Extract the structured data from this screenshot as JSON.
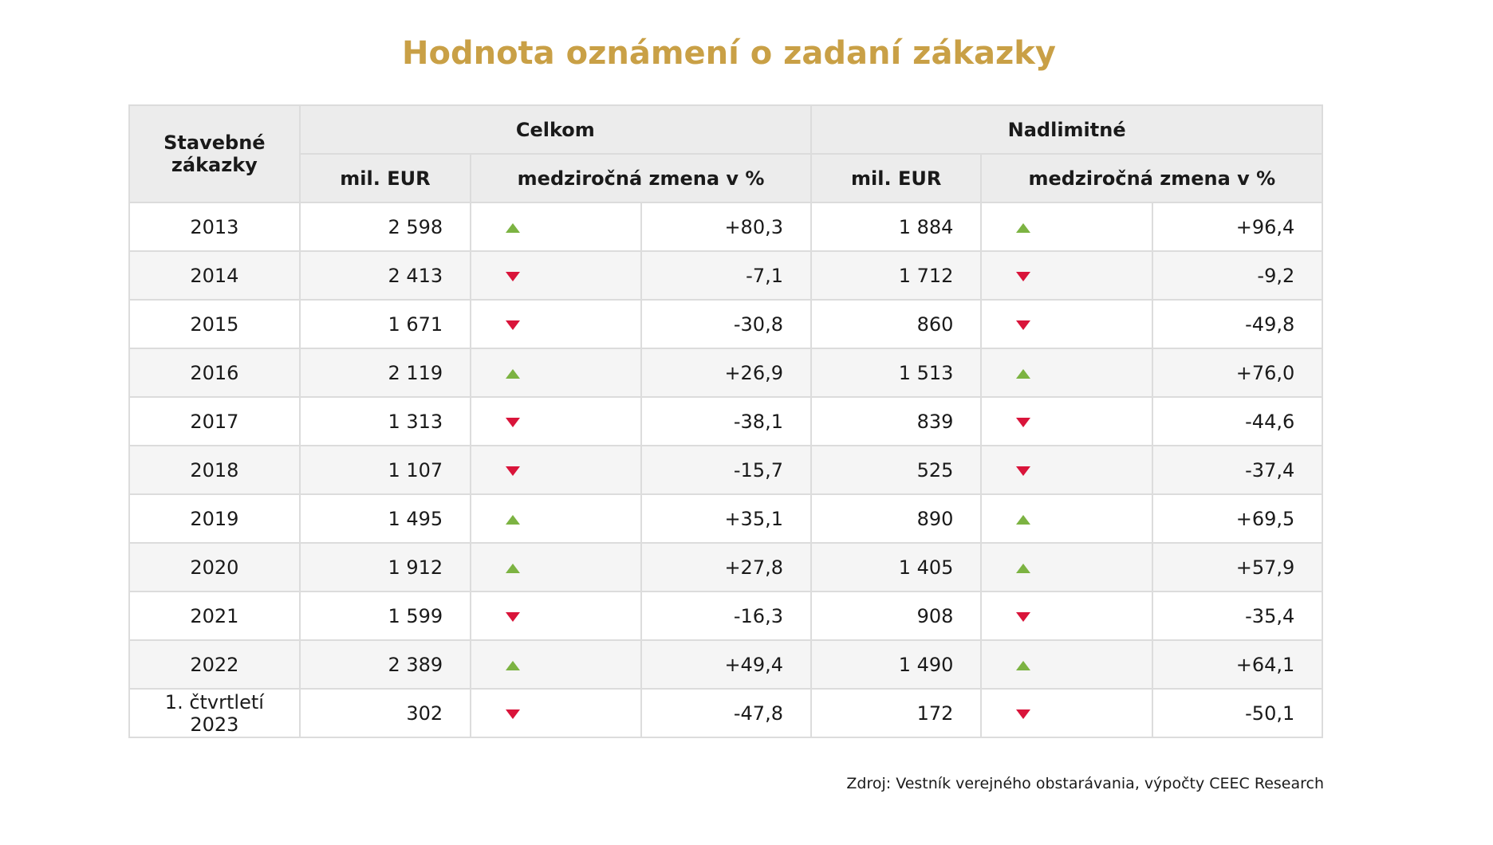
{
  "header": {
    "title": "Hodnota oznámení o zadaní zákazky"
  },
  "table": {
    "corner": "Stavebné zákazky",
    "groups": [
      "Celkom",
      "Nadlimitné"
    ],
    "subheaders": [
      "mil. EUR",
      "medziročná zmena v %",
      "mil. EUR",
      "medziročná zmena v %"
    ],
    "rows": [
      [
        "2013",
        "2 598",
        "+80,3",
        "1 884",
        "+96,4"
      ],
      [
        "2014",
        "2 413",
        "-7,1",
        "1 712",
        "-9,2"
      ],
      [
        "2015",
        "1 671",
        "-30,8",
        "860",
        "-49,8"
      ],
      [
        "2016",
        "2 119",
        "+26,9",
        "1 513",
        "+76,0"
      ],
      [
        "2017",
        "1 313",
        "-38,1",
        "839",
        "-44,6"
      ],
      [
        "2018",
        "1 107",
        "-15,7",
        "525",
        "-37,4"
      ],
      [
        "2019",
        "1 495",
        "+35,1",
        "890",
        "+69,5"
      ],
      [
        "2020",
        "1 912",
        "+27,8",
        "1 405",
        "+57,9"
      ],
      [
        "2021",
        "1 599",
        "-16,3",
        "908",
        "-35,4"
      ],
      [
        "2022",
        "2 389",
        "+49,4",
        "1 490",
        "+64,1"
      ],
      [
        "1. čtvrtletí 2023",
        "302",
        "-47,8",
        "172",
        "-50,1"
      ]
    ]
  },
  "footer": {
    "source": "Zdroj: Vestník verejného obstarávania, výpočty CEEC Research"
  }
}
